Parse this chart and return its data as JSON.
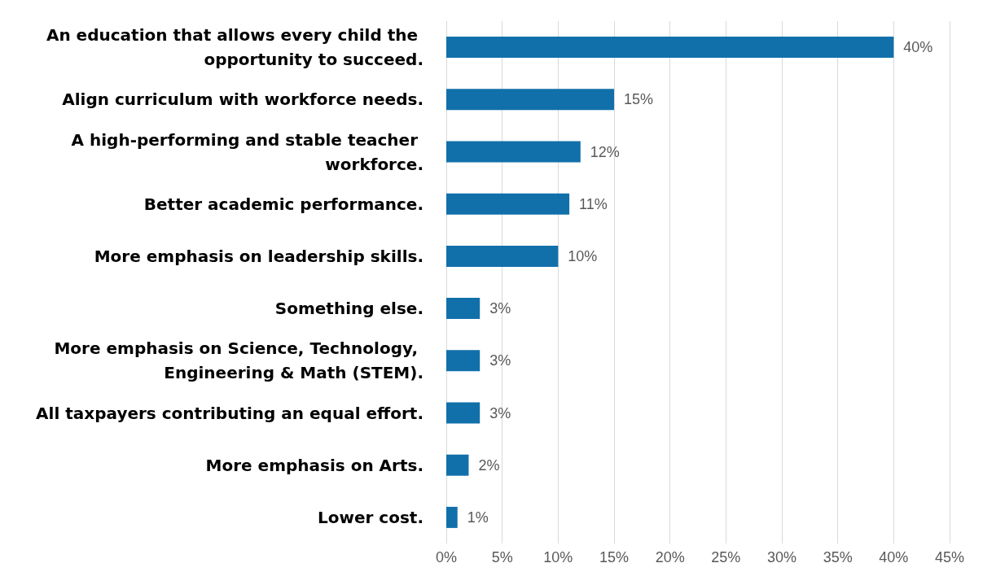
{
  "chart_data": {
    "type": "bar",
    "orientation": "horizontal",
    "categories": [
      "An education that allows every child the opportunity to succeed.",
      "Align curriculum with workforce needs.",
      "A high-performing and stable teacher workforce.",
      "Better academic performance.",
      "More emphasis on leadership skills.",
      "Something else.",
      "More emphasis on Science, Technology, Engineering & Math (STEM).",
      "All taxpayers contributing an equal effort.",
      "More emphasis on Arts.",
      "Lower cost."
    ],
    "values": [
      40,
      15,
      12,
      11,
      10,
      3,
      3,
      3,
      2,
      1
    ],
    "value_labels": [
      "40%",
      "15%",
      "12%",
      "11%",
      "10%",
      "3%",
      "3%",
      "3%",
      "2%",
      "1%"
    ],
    "color": "#1170aa",
    "xlim": [
      0,
      45
    ],
    "xticks": [
      {
        "value": 0,
        "label": "0%"
      },
      {
        "value": 5,
        "label": "5%"
      },
      {
        "value": 10,
        "label": "10%"
      },
      {
        "value": 15,
        "label": "15%"
      },
      {
        "value": 20,
        "label": "20%"
      },
      {
        "value": 25,
        "label": "25%"
      },
      {
        "value": 30,
        "label": "30%"
      },
      {
        "value": 35,
        "label": "35%"
      },
      {
        "value": 40,
        "label": "40%"
      },
      {
        "value": 45,
        "label": "45%"
      }
    ],
    "grid": "x"
  }
}
